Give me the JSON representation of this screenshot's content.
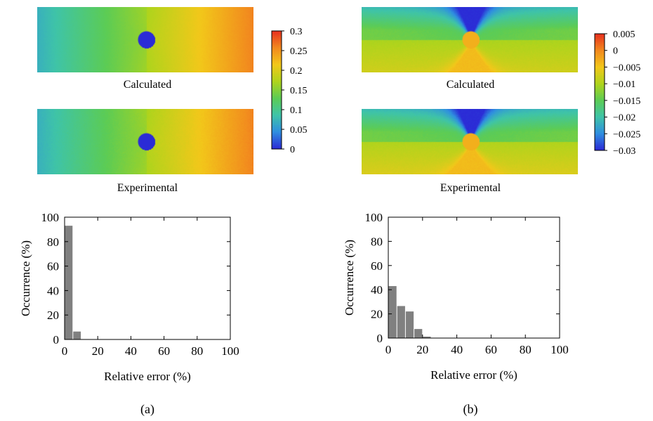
{
  "panels": [
    {
      "id": "a",
      "label": "(a)",
      "calculated_label": "Calculated",
      "experimental_label": "Experimental",
      "colorbar": {
        "tick_labels": [
          "0.3",
          "0.25",
          "0.2",
          "0.15",
          "0.1",
          "0.05",
          "0"
        ],
        "tick_values": [
          0.3,
          0.25,
          0.2,
          0.15,
          0.1,
          0.05,
          0
        ],
        "range": [
          0,
          0.3
        ]
      },
      "field": {
        "pattern": "horizontal-gradient",
        "left_value": 0.07,
        "right_value": 0.26,
        "hole_value": 0.0
      }
    },
    {
      "id": "b",
      "label": "(b)",
      "calculated_label": "Calculated",
      "experimental_label": "Experimental",
      "colorbar": {
        "tick_labels": [
          "0.005",
          "0",
          "−0.005",
          "−0.01",
          "−0.015",
          "−0.02",
          "−0.025",
          "−0.03"
        ],
        "tick_values": [
          0.005,
          0,
          -0.005,
          -0.01,
          -0.015,
          -0.02,
          -0.025,
          -0.03
        ],
        "range": [
          -0.03,
          0.005
        ]
      },
      "field": {
        "pattern": "butterfly",
        "background_value": -0.013,
        "top_value": -0.03,
        "bottom_value": -0.004,
        "hole_value": -0.003
      }
    }
  ],
  "colormap": [
    "#2b2bd6",
    "#2f8fe0",
    "#3fc4a8",
    "#5ccc55",
    "#b0d41c",
    "#f2c81a",
    "#f28a1e",
    "#e8321e"
  ],
  "chart_data": [
    {
      "type": "bar",
      "panel": "a",
      "xlabel": "Relative error (%)",
      "ylabel": "Occurrence (%)",
      "xlim": [
        0,
        100
      ],
      "ylim": [
        0,
        100
      ],
      "x_ticks": [
        "0",
        "20",
        "40",
        "60",
        "80",
        "100"
      ],
      "y_ticks": [
        "0",
        "20",
        "40",
        "60",
        "80",
        "100"
      ],
      "bin_width": 5,
      "bins": [
        0,
        5,
        10,
        15,
        20
      ],
      "values": [
        93,
        6.5,
        0.3,
        0,
        0
      ],
      "bar_color": "#808080"
    },
    {
      "type": "bar",
      "panel": "b",
      "xlabel": "Relative error (%)",
      "ylabel": "Occurrence (%)",
      "xlim": [
        0,
        100
      ],
      "ylim": [
        0,
        100
      ],
      "x_ticks": [
        "0",
        "20",
        "40",
        "60",
        "80",
        "100"
      ],
      "y_ticks": [
        "0",
        "20",
        "40",
        "60",
        "80",
        "100"
      ],
      "bin_width": 5,
      "bins": [
        0,
        5,
        10,
        15,
        20,
        25
      ],
      "values": [
        43,
        26.5,
        22,
        7.5,
        1.2,
        0.2
      ],
      "bar_color": "#808080"
    }
  ]
}
